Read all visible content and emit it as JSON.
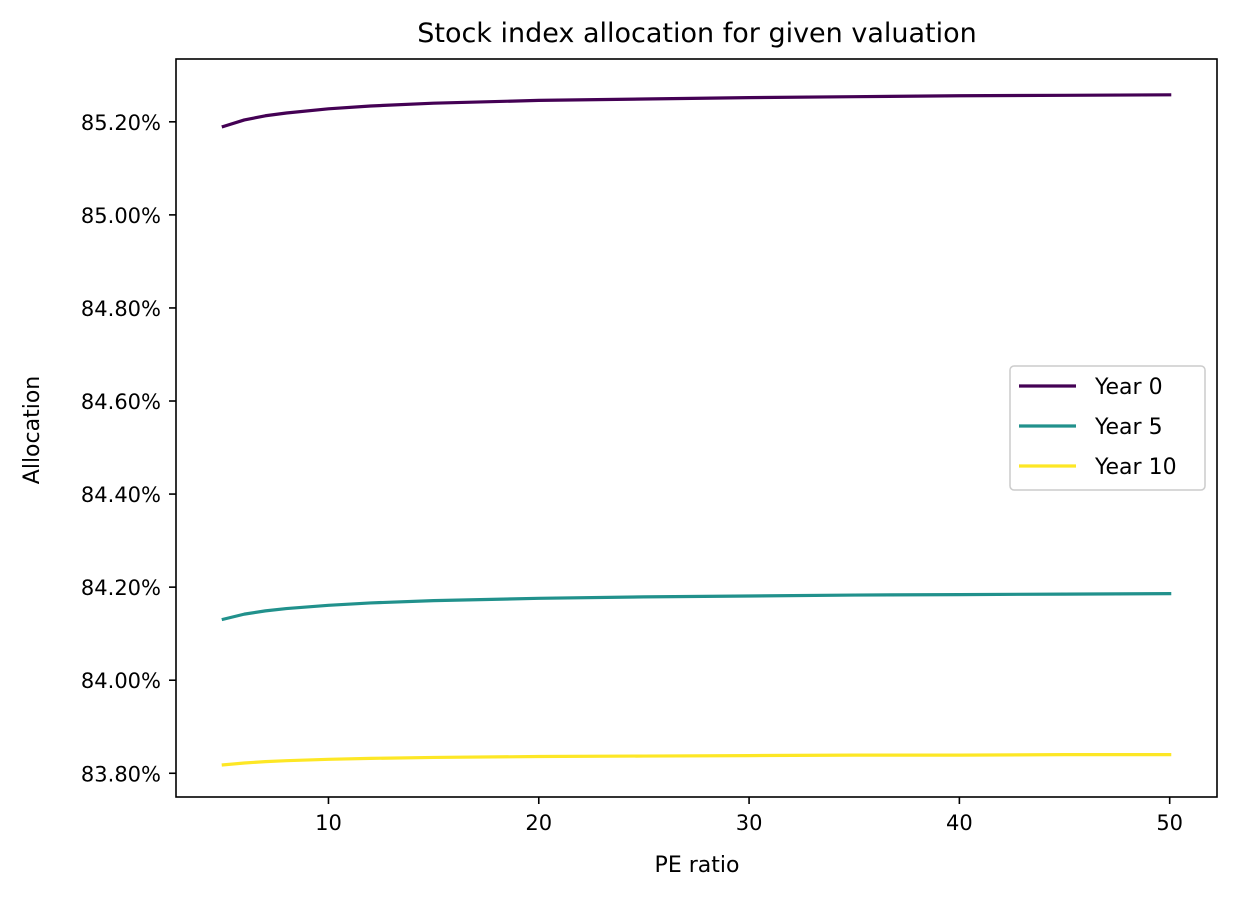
{
  "chart_data": {
    "type": "line",
    "title": "Stock index allocation for given valuation",
    "xlabel": "PE ratio",
    "ylabel": "Allocation",
    "xlim": [
      2.75,
      52.25
    ],
    "ylim": [
      83.749,
      85.335
    ],
    "x_ticks": [
      10,
      20,
      30,
      40,
      50
    ],
    "x_tick_labels": [
      "10",
      "20",
      "30",
      "40",
      "50"
    ],
    "y_ticks": [
      83.8,
      84.0,
      84.2,
      84.4,
      84.6,
      84.8,
      85.0,
      85.2
    ],
    "y_tick_labels": [
      "83.80%",
      "84.00%",
      "84.20%",
      "84.40%",
      "84.60%",
      "84.80%",
      "85.00%",
      "85.20%"
    ],
    "grid": false,
    "legend_position": "center-right",
    "x": [
      5,
      6,
      7,
      8,
      10,
      12,
      15,
      20,
      25,
      30,
      35,
      40,
      45,
      50
    ],
    "series": [
      {
        "name": "Year 0",
        "color": "#440154",
        "values": [
          85.19,
          85.204,
          85.213,
          85.219,
          85.228,
          85.234,
          85.24,
          85.246,
          85.249,
          85.252,
          85.254,
          85.256,
          85.257,
          85.258
        ]
      },
      {
        "name": "Year 5",
        "color": "#21918c",
        "values": [
          84.131,
          84.142,
          84.149,
          84.154,
          84.161,
          84.166,
          84.171,
          84.176,
          84.179,
          84.181,
          84.183,
          84.184,
          84.185,
          84.186
        ]
      },
      {
        "name": "Year 10",
        "color": "#fde725",
        "values": [
          83.818,
          83.822,
          83.825,
          83.827,
          83.83,
          83.832,
          83.834,
          83.836,
          83.837,
          83.838,
          83.839,
          83.839,
          83.84,
          83.84
        ]
      }
    ]
  }
}
